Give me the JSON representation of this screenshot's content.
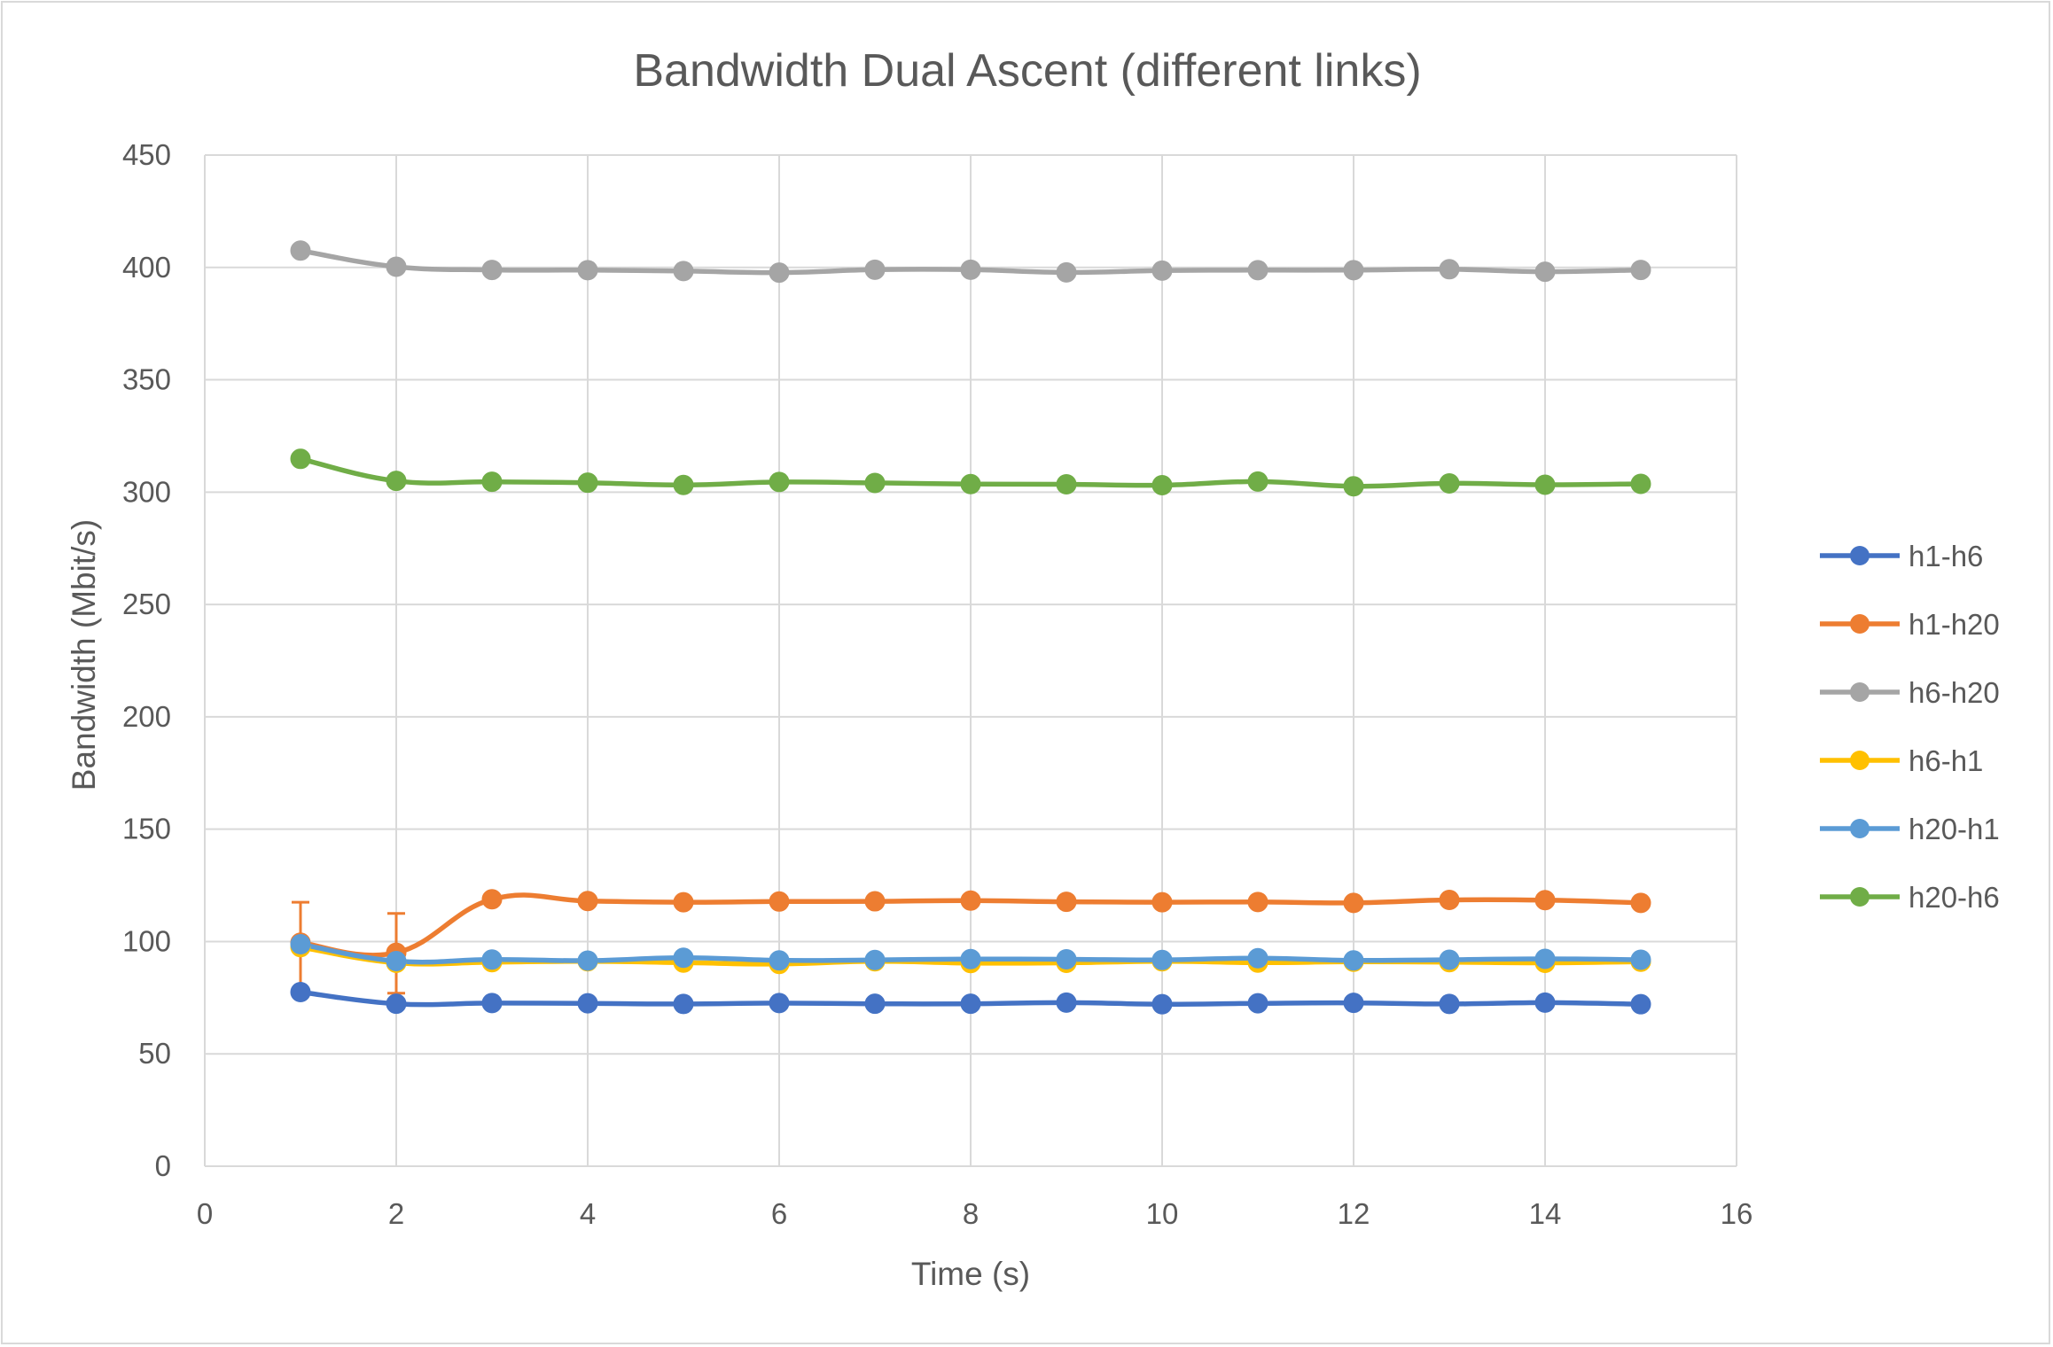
{
  "chart_data": {
    "type": "line",
    "title": "Bandwidth Dual Ascent (different links)",
    "xlabel": "Time (s)",
    "ylabel": "Bandwidth (Mbit/s)",
    "xlim": [
      0,
      16
    ],
    "ylim": [
      0,
      450
    ],
    "xticks": [
      0,
      2,
      4,
      6,
      8,
      10,
      12,
      14,
      16
    ],
    "yticks": [
      0,
      50,
      100,
      150,
      200,
      250,
      300,
      350,
      400,
      450
    ],
    "grid": true,
    "legend_position": "right",
    "x": [
      1,
      2,
      3,
      4,
      5,
      6,
      7,
      8,
      9,
      10,
      11,
      12,
      13,
      14,
      15
    ],
    "series": [
      {
        "name": "h1-h6",
        "color": "#4472c4",
        "values": [
          77.5,
          72.3,
          72.6,
          72.5,
          72.2,
          72.6,
          72.3,
          72.3,
          72.8,
          72.1,
          72.5,
          72.7,
          72.2,
          72.8,
          72.1
        ]
      },
      {
        "name": "h1-h20",
        "color": "#ed7d31",
        "values": [
          99.5,
          95.0,
          118.8,
          118.0,
          117.5,
          117.8,
          117.9,
          118.2,
          117.7,
          117.5,
          117.6,
          117.2,
          118.5,
          118.4,
          117.2
        ],
        "error_bars": [
          {
            "index": 0,
            "low": 77.5,
            "high": 117.5
          },
          {
            "index": 1,
            "low": 77.0,
            "high": 112.5
          }
        ]
      },
      {
        "name": "h6-h20",
        "color": "#a5a5a5",
        "values": [
          407.5,
          400.3,
          398.9,
          398.8,
          398.4,
          397.7,
          399.0,
          399.0,
          397.8,
          398.6,
          398.8,
          398.8,
          399.2,
          398.1,
          398.9
        ]
      },
      {
        "name": "h6-h1",
        "color": "#ffc000",
        "values": [
          97.5,
          90.5,
          90.8,
          91.2,
          90.6,
          90.0,
          91.2,
          90.4,
          90.5,
          91.2,
          90.6,
          91.0,
          90.8,
          90.5,
          91.0
        ]
      },
      {
        "name": "h20-h1",
        "color": "#5b9bd5",
        "values": [
          98.8,
          91.3,
          92.0,
          91.5,
          92.8,
          91.6,
          91.8,
          92.2,
          92.1,
          91.8,
          92.6,
          91.6,
          91.9,
          92.3,
          91.9
        ]
      },
      {
        "name": "h20-h6",
        "color": "#70ad47",
        "values": [
          314.8,
          305.0,
          304.6,
          304.2,
          303.2,
          304.5,
          304.1,
          303.6,
          303.5,
          303.1,
          304.7,
          302.6,
          303.9,
          303.3,
          303.7
        ]
      }
    ]
  }
}
